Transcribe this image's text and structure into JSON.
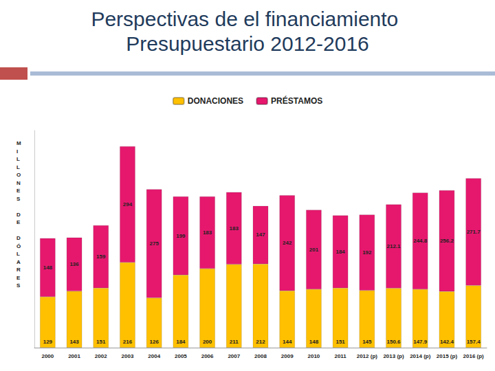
{
  "chart_data": {
    "type": "bar",
    "title": "Perspectivas de el financiamiento Presupuestario 2012-2016",
    "y_label": "MILLONES DE DÓLARES",
    "categories": [
      "2000",
      "2001",
      "2002",
      "2003",
      "2004",
      "2005",
      "2006",
      "2007",
      "2008",
      "2009",
      "2010",
      "2011",
      "2012 (p)",
      "2013 (p)",
      "2014 (p)",
      "2015 (p)",
      "2016 (p)"
    ],
    "series": [
      {
        "name": "DONACIONES",
        "color": "#ffc000",
        "values": [
          129,
          143,
          151,
          216,
          126,
          184,
          200,
          211,
          212,
          144,
          148,
          151,
          145,
          150.6,
          147.9,
          142.4,
          157.4
        ]
      },
      {
        "name": "PRÉSTAMOS",
        "color": "#e6186e",
        "values": [
          148,
          136,
          159,
          294,
          275,
          199,
          183,
          183,
          147,
          242,
          201,
          184,
          192,
          212.1,
          244.8,
          256.2,
          271.7
        ]
      }
    ],
    "ylim": [
      0,
      550
    ],
    "stacked": true,
    "data_labels": true,
    "tick_labels": "x",
    "legend": "top",
    "grid": false
  }
}
